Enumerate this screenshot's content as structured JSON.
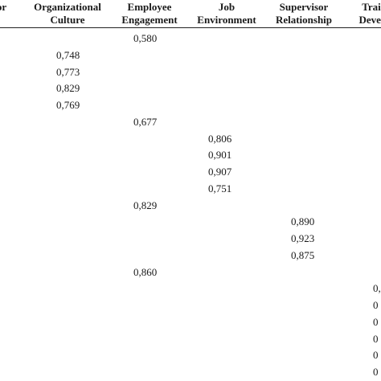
{
  "columns": [
    {
      "id": "col-factor",
      "line1": "or",
      "line2": ""
    },
    {
      "id": "col-organizational-culture",
      "line1": "Organizational",
      "line2": "Culture"
    },
    {
      "id": "col-employee-engagement",
      "line1": "Employee",
      "line2": "Engagement"
    },
    {
      "id": "col-job-environment",
      "line1": "Job",
      "line2": "Environment"
    },
    {
      "id": "col-supervisor-relationship",
      "line1": "Supervisor",
      "line2": "Relationship"
    },
    {
      "id": "col-training-development",
      "line1": "Trai",
      "line2": "Devel"
    }
  ],
  "rows": [
    {
      "col": 2,
      "value": "0,580"
    },
    {
      "col": 1,
      "value": "0,748"
    },
    {
      "col": 1,
      "value": "0,773"
    },
    {
      "col": 1,
      "value": "0,829"
    },
    {
      "col": 1,
      "value": "0,769"
    },
    {
      "col": 2,
      "value": "0,677"
    },
    {
      "col": 3,
      "value": "0,806"
    },
    {
      "col": 3,
      "value": "0,901"
    },
    {
      "col": 3,
      "value": "0,907"
    },
    {
      "col": 3,
      "value": "0,751"
    },
    {
      "col": 2,
      "value": "0,829"
    },
    {
      "col": 4,
      "value": "0,890"
    },
    {
      "col": 4,
      "value": "0,923"
    },
    {
      "col": 4,
      "value": "0,875"
    },
    {
      "col": 2,
      "value": "0,860"
    },
    {
      "col": 5,
      "value": "0,"
    },
    {
      "col": 5,
      "value": "0"
    },
    {
      "col": 5,
      "value": "0"
    },
    {
      "col": 5,
      "value": "0"
    },
    {
      "col": 5,
      "value": "0"
    },
    {
      "col": 5,
      "value": "0"
    }
  ]
}
